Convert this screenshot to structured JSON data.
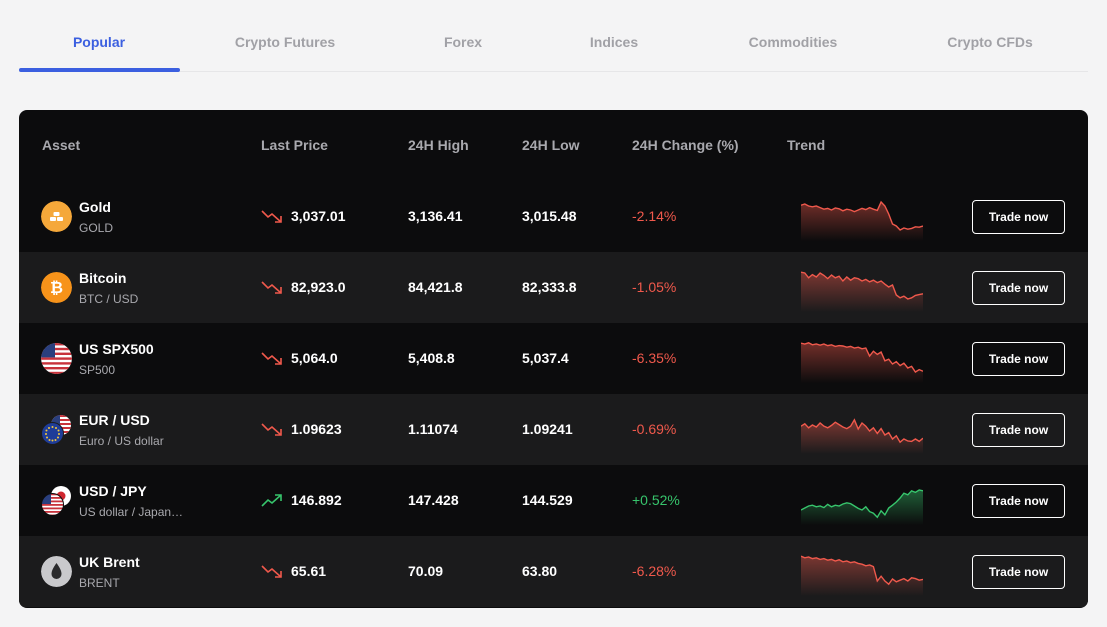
{
  "tabs": [
    {
      "label": "Popular",
      "active": true
    },
    {
      "label": "Crypto Futures",
      "active": false
    },
    {
      "label": "Forex",
      "active": false
    },
    {
      "label": "Indices",
      "active": false
    },
    {
      "label": "Commodities",
      "active": false
    },
    {
      "label": "Crypto CFDs",
      "active": false
    }
  ],
  "table": {
    "headers": {
      "asset": "Asset",
      "last_price": "Last Price",
      "high": "24H High",
      "low": "24H Low",
      "change": "24H Change (%)",
      "trend": "Trend"
    },
    "rows": [
      {
        "name": "Gold",
        "sub": "GOLD",
        "icon": "gold-bars-icon",
        "last": "3,037.01",
        "high": "3,136.41",
        "low": "3,015.48",
        "change": "-2.14%",
        "direction": "down",
        "trade": "Trade now"
      },
      {
        "name": "Bitcoin",
        "sub": "BTC / USD",
        "icon": "bitcoin-icon",
        "last": "82,923.0",
        "high": "84,421.8",
        "low": "82,333.8",
        "change": "-1.05%",
        "direction": "down",
        "trade": "Trade now"
      },
      {
        "name": "US SPX500",
        "sub": "SP500",
        "icon": "us-flag-icon",
        "last": "5,064.0",
        "high": "5,408.8",
        "low": "5,037.4",
        "change": "-6.35%",
        "direction": "down",
        "trade": "Trade now"
      },
      {
        "name": "EUR / USD",
        "sub": "Euro / US dollar",
        "icon": "eu-us-flags-icon",
        "last": "1.09623",
        "high": "1.11074",
        "low": "1.09241",
        "change": "-0.69%",
        "direction": "down",
        "trade": "Trade now"
      },
      {
        "name": "USD / JPY",
        "sub": "US dollar / Japan…",
        "icon": "us-jp-flags-icon",
        "last": "146.892",
        "high": "147.428",
        "low": "144.529",
        "change": "+0.52%",
        "direction": "up",
        "trade": "Trade now"
      },
      {
        "name": "UK Brent",
        "sub": "BRENT",
        "icon": "oil-drop-icon",
        "last": "65.61",
        "high": "70.09",
        "low": "63.80",
        "change": "-6.28%",
        "direction": "down",
        "trade": "Trade now"
      }
    ]
  },
  "colors": {
    "accent": "#3b5fe0",
    "down": "#f0594c",
    "up": "#37c56c",
    "panel": "#0c0c0d",
    "row_alt": "#1b1b1c"
  },
  "trends": [
    [
      0.82,
      0.85,
      0.8,
      0.78,
      0.8,
      0.76,
      0.72,
      0.74,
      0.7,
      0.75,
      0.73,
      0.68,
      0.72,
      0.7,
      0.66,
      0.7,
      0.74,
      0.71,
      0.76,
      0.72,
      0.69,
      0.9,
      0.8,
      0.6,
      0.35,
      0.3,
      0.2,
      0.25,
      0.22,
      0.24,
      0.28,
      0.27,
      0.3
    ],
    [
      0.92,
      0.9,
      0.78,
      0.86,
      0.8,
      0.9,
      0.84,
      0.76,
      0.85,
      0.78,
      0.82,
      0.7,
      0.8,
      0.72,
      0.78,
      0.76,
      0.7,
      0.74,
      0.68,
      0.72,
      0.66,
      0.7,
      0.62,
      0.55,
      0.6,
      0.35,
      0.28,
      0.32,
      0.25,
      0.28,
      0.34,
      0.36,
      0.38
    ],
    [
      0.92,
      0.9,
      0.93,
      0.88,
      0.9,
      0.87,
      0.9,
      0.86,
      0.88,
      0.84,
      0.86,
      0.85,
      0.82,
      0.84,
      0.8,
      0.82,
      0.78,
      0.8,
      0.6,
      0.72,
      0.64,
      0.7,
      0.48,
      0.52,
      0.4,
      0.46,
      0.36,
      0.42,
      0.3,
      0.34,
      0.2,
      0.26,
      0.22
    ],
    [
      0.62,
      0.68,
      0.58,
      0.65,
      0.6,
      0.7,
      0.62,
      0.58,
      0.64,
      0.72,
      0.66,
      0.6,
      0.56,
      0.62,
      0.78,
      0.55,
      0.7,
      0.62,
      0.5,
      0.58,
      0.44,
      0.56,
      0.4,
      0.46,
      0.3,
      0.38,
      0.22,
      0.3,
      0.25,
      0.24,
      0.3,
      0.24,
      0.32
    ],
    [
      0.3,
      0.35,
      0.4,
      0.42,
      0.38,
      0.4,
      0.36,
      0.44,
      0.38,
      0.42,
      0.4,
      0.45,
      0.48,
      0.46,
      0.4,
      0.34,
      0.3,
      0.38,
      0.26,
      0.22,
      0.12,
      0.28,
      0.18,
      0.35,
      0.42,
      0.5,
      0.6,
      0.72,
      0.68,
      0.78,
      0.74,
      0.8,
      0.78
    ],
    [
      0.92,
      0.88,
      0.9,
      0.86,
      0.88,
      0.84,
      0.86,
      0.82,
      0.84,
      0.8,
      0.83,
      0.78,
      0.8,
      0.76,
      0.78,
      0.74,
      0.72,
      0.68,
      0.7,
      0.66,
      0.3,
      0.42,
      0.3,
      0.22,
      0.35,
      0.28,
      0.32,
      0.36,
      0.3,
      0.38,
      0.36,
      0.32,
      0.34
    ]
  ]
}
